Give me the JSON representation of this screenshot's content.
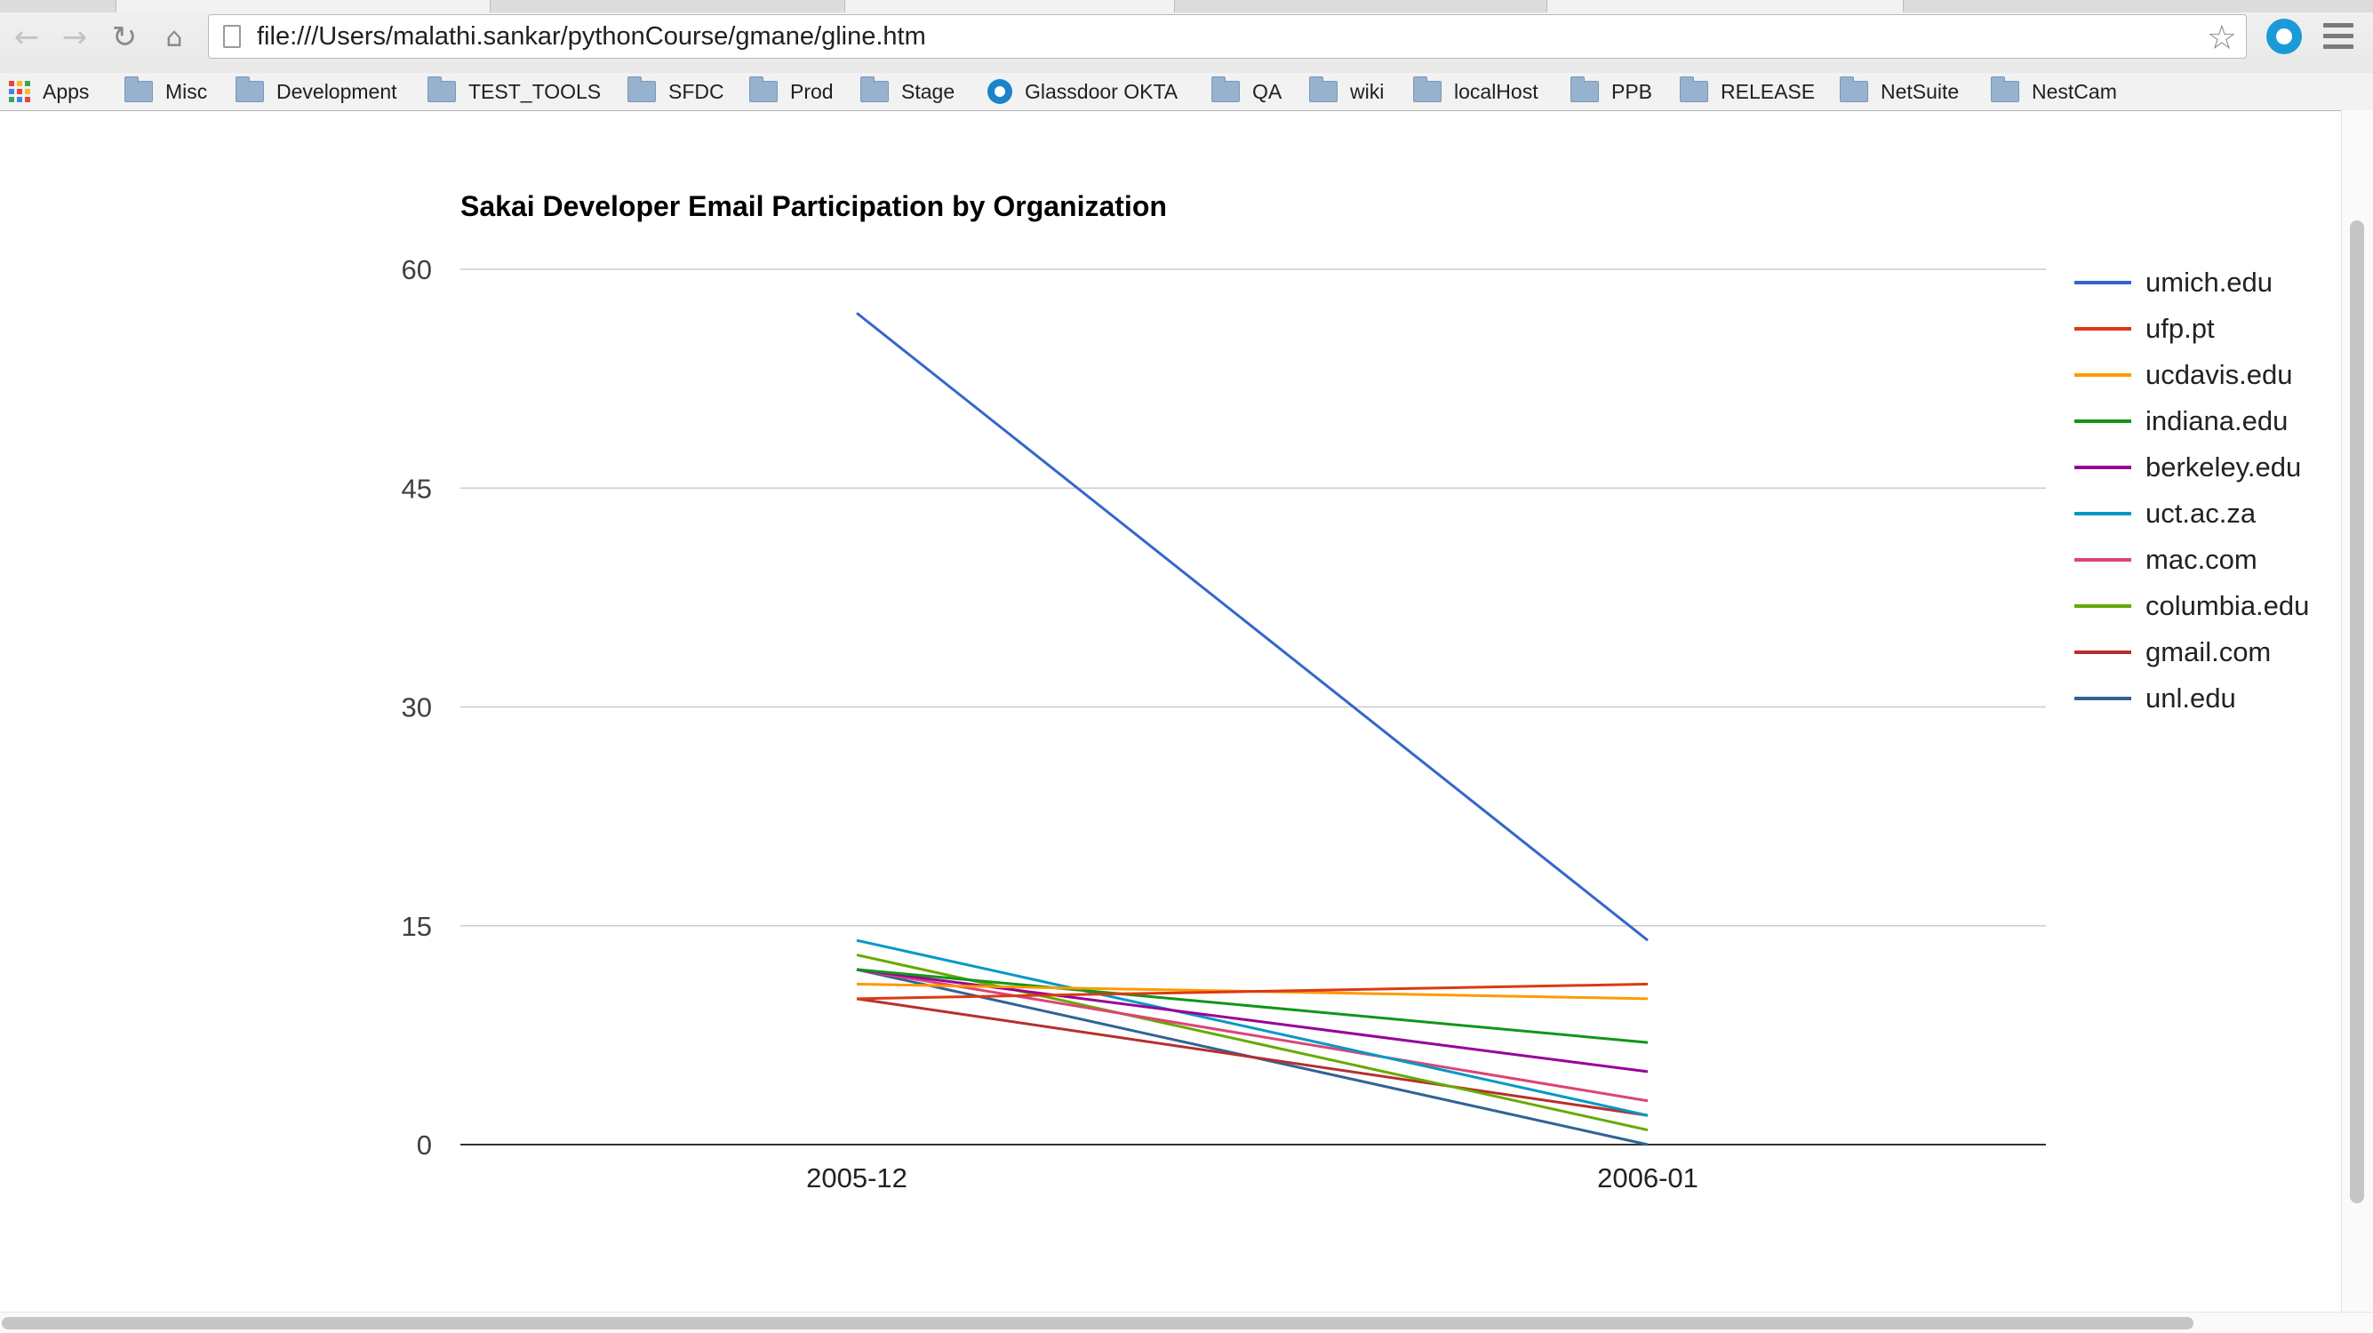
{
  "browser": {
    "url": "file:///Users/malathi.sankar/pythonCourse/gmane/gline.htm",
    "nav_icons": {
      "back": "back-arrow-icon",
      "forward": "forward-arrow-icon",
      "reload": "reload-icon",
      "home": "home-icon"
    },
    "bookmarks": [
      {
        "label": "Apps",
        "icon": "apps-grid-icon"
      },
      {
        "label": "Misc",
        "icon": "folder-icon"
      },
      {
        "label": "Development",
        "icon": "folder-icon"
      },
      {
        "label": "TEST_TOOLS",
        "icon": "folder-icon"
      },
      {
        "label": "SFDC",
        "icon": "folder-icon"
      },
      {
        "label": "Prod",
        "icon": "folder-icon"
      },
      {
        "label": "Stage",
        "icon": "folder-icon"
      },
      {
        "label": "Glassdoor OKTA",
        "icon": "okta-icon"
      },
      {
        "label": "QA",
        "icon": "folder-icon"
      },
      {
        "label": "wiki",
        "icon": "folder-icon"
      },
      {
        "label": "localHost",
        "icon": "folder-icon"
      },
      {
        "label": "PPB",
        "icon": "folder-icon"
      },
      {
        "label": "RELEASE",
        "icon": "folder-icon"
      },
      {
        "label": "NetSuite",
        "icon": "folder-icon"
      },
      {
        "label": "NestCam",
        "icon": "folder-icon"
      }
    ]
  },
  "chart_data": {
    "type": "line",
    "title": "Sakai Developer Email Participation by Organization",
    "categories": [
      "2005-12",
      "2006-01"
    ],
    "y_ticks": [
      "0",
      "15",
      "30",
      "45",
      "60"
    ],
    "ylim": [
      0,
      60
    ],
    "grid": true,
    "legend_position": "right",
    "series": [
      {
        "name": "umich.edu",
        "color": "#3366cc",
        "values": [
          57,
          14
        ]
      },
      {
        "name": "ufp.pt",
        "color": "#dc3912",
        "values": [
          10,
          11
        ]
      },
      {
        "name": "ucdavis.edu",
        "color": "#ff9900",
        "values": [
          11,
          10
        ]
      },
      {
        "name": "indiana.edu",
        "color": "#109618",
        "values": [
          12,
          7
        ]
      },
      {
        "name": "berkeley.edu",
        "color": "#990099",
        "values": [
          12,
          5
        ]
      },
      {
        "name": "uct.ac.za",
        "color": "#0099c6",
        "values": [
          14,
          2
        ]
      },
      {
        "name": "mac.com",
        "color": "#dd4477",
        "values": [
          12,
          3
        ]
      },
      {
        "name": "columbia.edu",
        "color": "#66aa00",
        "values": [
          13,
          1
        ]
      },
      {
        "name": "gmail.com",
        "color": "#b82e2e",
        "values": [
          10,
          2
        ]
      },
      {
        "name": "unl.edu",
        "color": "#316395",
        "values": [
          12,
          0
        ]
      }
    ]
  }
}
